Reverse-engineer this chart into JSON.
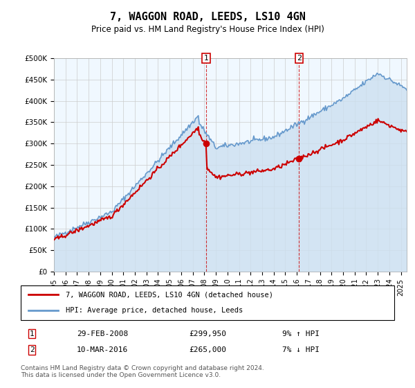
{
  "title": "7, WAGGON ROAD, LEEDS, LS10 4GN",
  "subtitle": "Price paid vs. HM Land Registry's House Price Index (HPI)",
  "ylabel_ticks": [
    "£0",
    "£50K",
    "£100K",
    "£150K",
    "£200K",
    "£250K",
    "£300K",
    "£350K",
    "£400K",
    "£450K",
    "£500K"
  ],
  "ylim": [
    0,
    500000
  ],
  "xlim_start": 1995.0,
  "xlim_end": 2025.5,
  "transaction1": {
    "date_x": 2008.16,
    "price": 299950,
    "label": "1"
  },
  "transaction2": {
    "date_x": 2016.19,
    "price": 265000,
    "label": "2"
  },
  "legend_line1": "7, WAGGON ROAD, LEEDS, LS10 4GN (detached house)",
  "legend_line2": "HPI: Average price, detached house, Leeds",
  "table_row1_num": "1",
  "table_row1_date": "29-FEB-2008",
  "table_row1_price": "£299,950",
  "table_row1_hpi": "9% ↑ HPI",
  "table_row2_num": "2",
  "table_row2_date": "10-MAR-2016",
  "table_row2_price": "£265,000",
  "table_row2_hpi": "7% ↓ HPI",
  "footer": "Contains HM Land Registry data © Crown copyright and database right 2024.\nThis data is licensed under the Open Government Licence v3.0.",
  "red_color": "#cc0000",
  "blue_color": "#6699cc",
  "blue_fill": "#cce0f0",
  "grid_color": "#cccccc",
  "background_color": "#ffffff",
  "plot_bg_color": "#f0f8ff"
}
